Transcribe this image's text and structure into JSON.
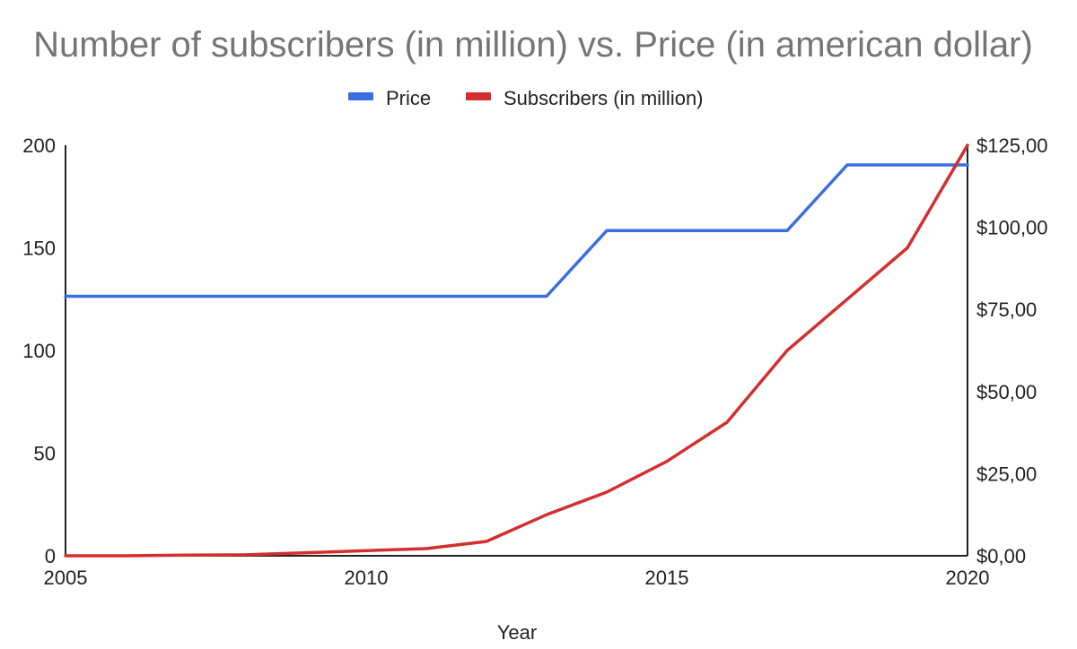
{
  "chart_data": {
    "type": "line",
    "title": "Number of subscribers (in million) vs. Price (in american dollar)",
    "xlabel": "Year",
    "ylabel": "",
    "y2label": "",
    "x": [
      2005,
      2006,
      2007,
      2008,
      2009,
      2010,
      2011,
      2012,
      2013,
      2014,
      2015,
      2016,
      2017,
      2018,
      2019,
      2020
    ],
    "xlim": [
      2005,
      2020
    ],
    "ylim": [
      0,
      200
    ],
    "y2lim": [
      0,
      125
    ],
    "x_ticks": [
      "2005",
      "2010",
      "2015",
      "2020"
    ],
    "y_ticks": [
      "0",
      "50",
      "100",
      "150",
      "200"
    ],
    "y2_ticks": [
      "$0,00",
      "$25,00",
      "$50,00",
      "$75,00",
      "$100,00",
      "$125,00"
    ],
    "grid": false,
    "legend_position": "top",
    "series": [
      {
        "name": "Price",
        "axis": "right",
        "color": "#3b6fe0",
        "values": [
          79,
          79,
          79,
          79,
          79,
          79,
          79,
          79,
          79,
          99,
          99,
          99,
          99,
          119,
          119,
          119
        ]
      },
      {
        "name": "Subscribers (in million)",
        "axis": "left",
        "color": "#d32f2f",
        "values": [
          0,
          0,
          0.3,
          0.5,
          1.5,
          2.5,
          3.5,
          7,
          20,
          31,
          46,
          65,
          100,
          125,
          150,
          200
        ]
      }
    ]
  }
}
